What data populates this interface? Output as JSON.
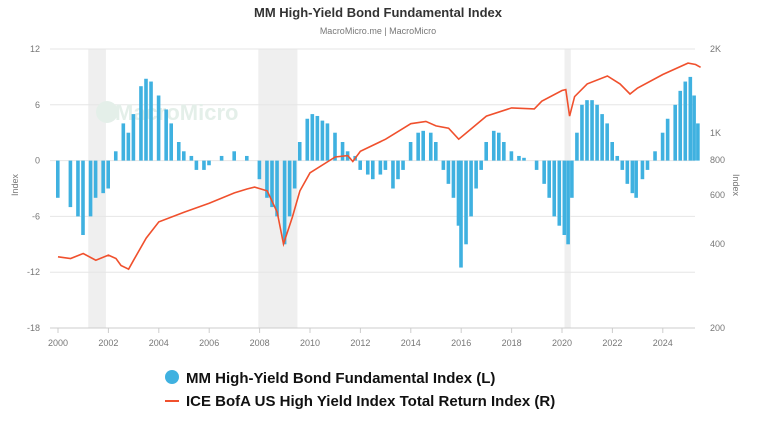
{
  "chart_data": {
    "type": "bar+line",
    "title": "MM High-Yield Bond Fundamental Index",
    "subtitle": "MacroMicro.me | MacroMicro",
    "watermark": "MacroMicro",
    "ylabel_left": "Index",
    "ylabel_right": "Index",
    "ylim_left": [
      -18,
      12
    ],
    "left_ticks": [
      "12",
      "6",
      "0",
      "-6",
      "-12",
      "-18"
    ],
    "left_tick_values": [
      12,
      6,
      0,
      -6,
      -12,
      -18
    ],
    "ylim_right": [
      200,
      2000
    ],
    "right_scale": "log",
    "right_ticks": [
      "2K",
      "1K",
      "800",
      "600",
      "400",
      "200"
    ],
    "right_tick_values": [
      2000,
      1000,
      800,
      600,
      400,
      200
    ],
    "xlim": [
      2000,
      2025.6
    ],
    "x_ticks": [
      "2000",
      "2002",
      "2004",
      "2006",
      "2008",
      "2010",
      "2012",
      "2014",
      "2016",
      "2018",
      "2020",
      "2022",
      "2024"
    ],
    "recessions": [
      [
        2001.2,
        2001.9
      ],
      [
        2007.95,
        2009.5
      ],
      [
        2020.1,
        2020.35
      ]
    ],
    "colors": {
      "bars": "#3fb1e0",
      "line": "#f0502d",
      "recession": "#efefef"
    },
    "series": [
      {
        "name": "MM High-Yield Bond Fundamental Index (L)",
        "type": "bar",
        "x": [
          2000,
          2000.5,
          2000.8,
          2001,
          2001.3,
          2001.5,
          2001.8,
          2002,
          2002.3,
          2002.6,
          2002.8,
          2003,
          2003.3,
          2003.5,
          2003.7,
          2004,
          2004.3,
          2004.5,
          2004.8,
          2005,
          2005.3,
          2005.5,
          2005.8,
          2006,
          2006.5,
          2007,
          2007.5,
          2008,
          2008.3,
          2008.5,
          2008.7,
          2009,
          2009.2,
          2009.4,
          2009.6,
          2009.9,
          2010.1,
          2010.3,
          2010.5,
          2010.7,
          2011,
          2011.3,
          2011.5,
          2011.8,
          2012,
          2012.3,
          2012.5,
          2012.8,
          2013,
          2013.3,
          2013.5,
          2013.7,
          2014,
          2014.3,
          2014.5,
          2014.8,
          2015,
          2015.3,
          2015.5,
          2015.7,
          2015.9,
          2016,
          2016.2,
          2016.4,
          2016.6,
          2016.8,
          2017,
          2017.3,
          2017.5,
          2017.7,
          2018,
          2018.3,
          2018.5,
          2018.8,
          2019,
          2019.3,
          2019.5,
          2019.7,
          2019.9,
          2020.1,
          2020.25,
          2020.4,
          2020.6,
          2020.8,
          2021,
          2021.2,
          2021.4,
          2021.6,
          2021.8,
          2022,
          2022.2,
          2022.4,
          2022.6,
          2022.8,
          2022.95,
          2023.2,
          2023.4,
          2023.7,
          2024,
          2024.2,
          2024.5,
          2024.7,
          2024.9,
          2025.1,
          2025.25,
          2025.4
        ],
        "values": [
          -4,
          -5,
          -6,
          -8,
          -6,
          -4,
          -3.5,
          -3,
          1,
          4,
          3,
          5,
          8,
          8.8,
          8.5,
          7,
          5.5,
          4,
          2,
          1,
          0.5,
          -1,
          -1,
          -0.5,
          0.5,
          1,
          0.5,
          -2,
          -4,
          -5,
          -6,
          -9,
          -6,
          -3,
          2,
          4.5,
          5,
          4.8,
          4.3,
          4,
          3,
          2,
          1,
          0.5,
          -1,
          -1.5,
          -2,
          -1.5,
          -1,
          -3,
          -2,
          -1,
          2,
          3,
          3.2,
          3,
          2,
          -1,
          -2.5,
          -4,
          -7,
          -11.5,
          -9,
          -6,
          -3,
          -1,
          2,
          3.2,
          3,
          2,
          1,
          0.5,
          0.3,
          0,
          -1,
          -2.5,
          -4,
          -6,
          -7,
          -8,
          -9,
          -4,
          3,
          6,
          6.5,
          6.5,
          6,
          5,
          4,
          2,
          0.5,
          -1,
          -2.5,
          -3.5,
          -4,
          -2,
          -1,
          1,
          3,
          4.5,
          6,
          7.5,
          8.5,
          9,
          7,
          4
        ]
      },
      {
        "name": "ICE BofA US High Yield Index Total Return Index (R)",
        "type": "line",
        "x": [
          2000,
          2000.5,
          2001,
          2001.5,
          2002,
          2002.3,
          2002.5,
          2002.8,
          2003,
          2003.5,
          2004,
          2005,
          2006,
          2007,
          2007.5,
          2007.8,
          2008.3,
          2008.7,
          2008.95,
          2009.3,
          2009.6,
          2010,
          2011,
          2011.5,
          2011.7,
          2012,
          2013,
          2014,
          2014.6,
          2015,
          2015.5,
          2015.9,
          2016.2,
          2017,
          2018,
          2018.9,
          2019.2,
          2020,
          2020.15,
          2020.3,
          2020.5,
          2021,
          2021.8,
          2022.3,
          2022.7,
          2023,
          2024,
          2025,
          2025.3,
          2025.5
        ],
        "values": [
          360,
          355,
          370,
          350,
          365,
          355,
          335,
          325,
          350,
          420,
          480,
          520,
          560,
          610,
          630,
          640,
          620,
          520,
          400,
          500,
          620,
          720,
          820,
          830,
          790,
          860,
          950,
          1080,
          1100,
          1060,
          1040,
          950,
          1000,
          1150,
          1230,
          1220,
          1300,
          1420,
          1430,
          1150,
          1350,
          1500,
          1600,
          1500,
          1380,
          1450,
          1620,
          1780,
          1760,
          1720
        ]
      }
    ]
  }
}
